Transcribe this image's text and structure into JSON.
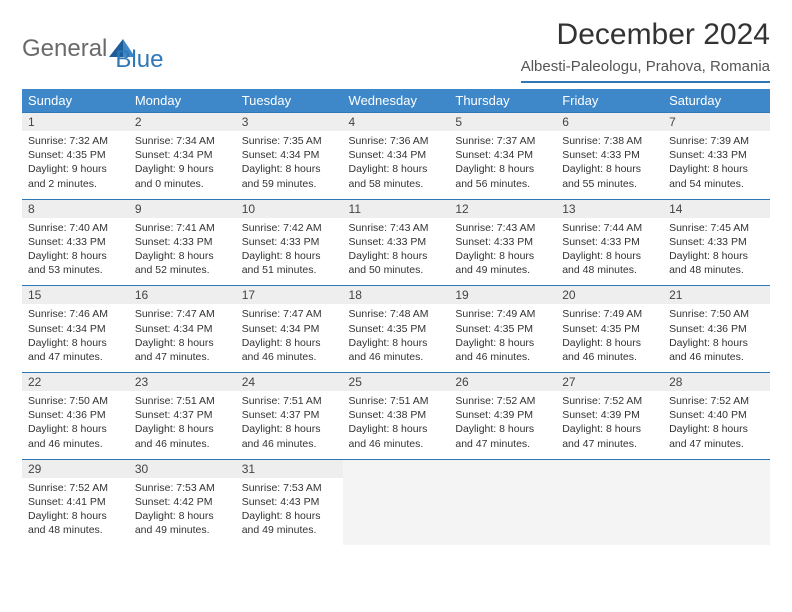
{
  "logo": {
    "text1": "General",
    "text2": "Blue"
  },
  "header": {
    "month_title": "December 2024",
    "location": "Albesti-Paleologu, Prahova, Romania"
  },
  "colors": {
    "header_bg": "#3e88c9",
    "accent": "#2f78b8",
    "daynum_bg": "#eeeeee",
    "empty_bg": "#f4f4f4",
    "text": "#333333"
  },
  "days_of_week": [
    "Sunday",
    "Monday",
    "Tuesday",
    "Wednesday",
    "Thursday",
    "Friday",
    "Saturday"
  ],
  "weeks": [
    [
      {
        "n": "1",
        "sr": "7:32 AM",
        "ss": "4:35 PM",
        "dl": "9 hours and 2 minutes."
      },
      {
        "n": "2",
        "sr": "7:34 AM",
        "ss": "4:34 PM",
        "dl": "9 hours and 0 minutes."
      },
      {
        "n": "3",
        "sr": "7:35 AM",
        "ss": "4:34 PM",
        "dl": "8 hours and 59 minutes."
      },
      {
        "n": "4",
        "sr": "7:36 AM",
        "ss": "4:34 PM",
        "dl": "8 hours and 58 minutes."
      },
      {
        "n": "5",
        "sr": "7:37 AM",
        "ss": "4:34 PM",
        "dl": "8 hours and 56 minutes."
      },
      {
        "n": "6",
        "sr": "7:38 AM",
        "ss": "4:33 PM",
        "dl": "8 hours and 55 minutes."
      },
      {
        "n": "7",
        "sr": "7:39 AM",
        "ss": "4:33 PM",
        "dl": "8 hours and 54 minutes."
      }
    ],
    [
      {
        "n": "8",
        "sr": "7:40 AM",
        "ss": "4:33 PM",
        "dl": "8 hours and 53 minutes."
      },
      {
        "n": "9",
        "sr": "7:41 AM",
        "ss": "4:33 PM",
        "dl": "8 hours and 52 minutes."
      },
      {
        "n": "10",
        "sr": "7:42 AM",
        "ss": "4:33 PM",
        "dl": "8 hours and 51 minutes."
      },
      {
        "n": "11",
        "sr": "7:43 AM",
        "ss": "4:33 PM",
        "dl": "8 hours and 50 minutes."
      },
      {
        "n": "12",
        "sr": "7:43 AM",
        "ss": "4:33 PM",
        "dl": "8 hours and 49 minutes."
      },
      {
        "n": "13",
        "sr": "7:44 AM",
        "ss": "4:33 PM",
        "dl": "8 hours and 48 minutes."
      },
      {
        "n": "14",
        "sr": "7:45 AM",
        "ss": "4:33 PM",
        "dl": "8 hours and 48 minutes."
      }
    ],
    [
      {
        "n": "15",
        "sr": "7:46 AM",
        "ss": "4:34 PM",
        "dl": "8 hours and 47 minutes."
      },
      {
        "n": "16",
        "sr": "7:47 AM",
        "ss": "4:34 PM",
        "dl": "8 hours and 47 minutes."
      },
      {
        "n": "17",
        "sr": "7:47 AM",
        "ss": "4:34 PM",
        "dl": "8 hours and 46 minutes."
      },
      {
        "n": "18",
        "sr": "7:48 AM",
        "ss": "4:35 PM",
        "dl": "8 hours and 46 minutes."
      },
      {
        "n": "19",
        "sr": "7:49 AM",
        "ss": "4:35 PM",
        "dl": "8 hours and 46 minutes."
      },
      {
        "n": "20",
        "sr": "7:49 AM",
        "ss": "4:35 PM",
        "dl": "8 hours and 46 minutes."
      },
      {
        "n": "21",
        "sr": "7:50 AM",
        "ss": "4:36 PM",
        "dl": "8 hours and 46 minutes."
      }
    ],
    [
      {
        "n": "22",
        "sr": "7:50 AM",
        "ss": "4:36 PM",
        "dl": "8 hours and 46 minutes."
      },
      {
        "n": "23",
        "sr": "7:51 AM",
        "ss": "4:37 PM",
        "dl": "8 hours and 46 minutes."
      },
      {
        "n": "24",
        "sr": "7:51 AM",
        "ss": "4:37 PM",
        "dl": "8 hours and 46 minutes."
      },
      {
        "n": "25",
        "sr": "7:51 AM",
        "ss": "4:38 PM",
        "dl": "8 hours and 46 minutes."
      },
      {
        "n": "26",
        "sr": "7:52 AM",
        "ss": "4:39 PM",
        "dl": "8 hours and 47 minutes."
      },
      {
        "n": "27",
        "sr": "7:52 AM",
        "ss": "4:39 PM",
        "dl": "8 hours and 47 minutes."
      },
      {
        "n": "28",
        "sr": "7:52 AM",
        "ss": "4:40 PM",
        "dl": "8 hours and 47 minutes."
      }
    ],
    [
      {
        "n": "29",
        "sr": "7:52 AM",
        "ss": "4:41 PM",
        "dl": "8 hours and 48 minutes."
      },
      {
        "n": "30",
        "sr": "7:53 AM",
        "ss": "4:42 PM",
        "dl": "8 hours and 49 minutes."
      },
      {
        "n": "31",
        "sr": "7:53 AM",
        "ss": "4:43 PM",
        "dl": "8 hours and 49 minutes."
      },
      null,
      null,
      null,
      null
    ]
  ],
  "labels": {
    "sunrise": "Sunrise:",
    "sunset": "Sunset:",
    "daylight": "Daylight:"
  }
}
